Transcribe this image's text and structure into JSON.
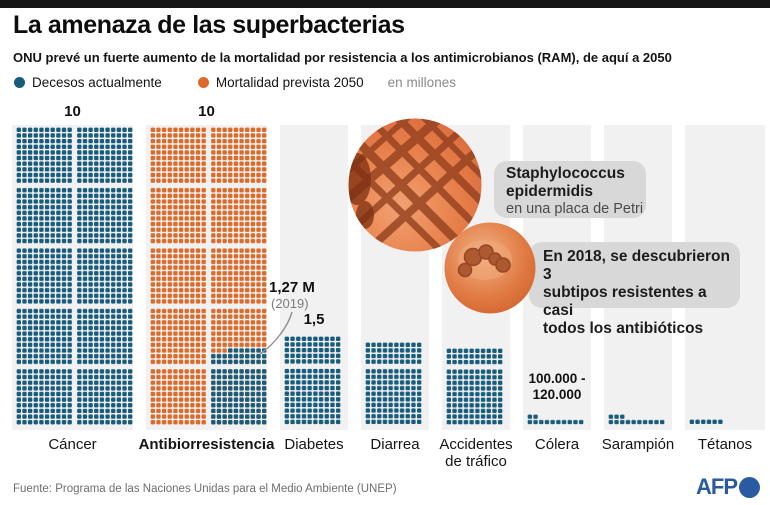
{
  "header": {
    "title": "La amenaza de las superbacterias",
    "subtitle": "ONU prevé un fuerte aumento de la mortalidad por resistencia a los antimicrobianos (RAM), de aquí a 2050"
  },
  "legend": {
    "current_label": "Decesos actualmente",
    "predicted_label": "Mortalidad prevista 2050",
    "units": "en millones"
  },
  "chart_data": {
    "type": "dot-matrix",
    "dot_value_deaths": 10000,
    "units_note": "en millones",
    "legend": [
      {
        "name": "current",
        "label": "Decesos actualmente",
        "color": "#185C7D"
      },
      {
        "name": "predicted",
        "label": "Mortalidad prevista 2050",
        "color": "#DD6A28"
      }
    ],
    "columns": [
      {
        "label": "Cáncer",
        "series": "current",
        "value_millions": 10,
        "dots": 1000,
        "width_dots": 20,
        "annotation": [
          "10"
        ]
      },
      {
        "label": "Antibiorresistencia",
        "bold_label": true,
        "series": "predicted",
        "value_millions": 10,
        "dots": 1000,
        "width_dots": 20,
        "annotation": [
          "10"
        ],
        "overlay": {
          "series": "current",
          "value_millions": 1.27,
          "dots": 127,
          "note": "1,27 M",
          "note_year": "(2019)"
        }
      },
      {
        "label": "Diabetes",
        "series": "current",
        "value_millions": 1.5,
        "dots": 150,
        "width_dots": 10,
        "annotation": [
          "1,5"
        ]
      },
      {
        "label": "Diarrea",
        "series": "current",
        "value_millions": 1.4,
        "dots": 140,
        "width_dots": 10
      },
      {
        "label": "Accidentes de tráfico",
        "series": "current",
        "value_millions": 1.3,
        "dots": 130,
        "width_dots": 10
      },
      {
        "label": "Cólera",
        "series": "current",
        "value_millions": 0.12,
        "dots": 12,
        "width_dots": 10,
        "annotation": [
          "100.000 -",
          "120.000"
        ]
      },
      {
        "label": "Sarampión",
        "series": "current",
        "value_millions": 0.13,
        "dots": 13,
        "width_dots": 10
      },
      {
        "label": "Tétanos",
        "series": "current",
        "value_millions": 0.06,
        "dots": 6,
        "width_dots": 10
      }
    ]
  },
  "annotations": {
    "antibio_value": "1,27 M",
    "antibio_year": "(2019)"
  },
  "callouts": {
    "staph_line1": "Staphylococcus",
    "staph_line2": "epidermidis",
    "staph_line3": "en una placa de Petri",
    "discovery_text": "En 2018, se descubrieron 3\nsubtipos resistentes a casi\ntodos los antibióticos"
  },
  "footer": {
    "source": "Fuente: Programa de las Naciones Unidas para el Medio Ambiente (UNEP)",
    "credit": "AFP"
  },
  "colors": {
    "current": "#185C7D",
    "predicted": "#DD6A28",
    "band_bg": "#F1F1F1",
    "callout_bg": "#D8D8D8",
    "afp_blue": "#2A5AA0"
  }
}
